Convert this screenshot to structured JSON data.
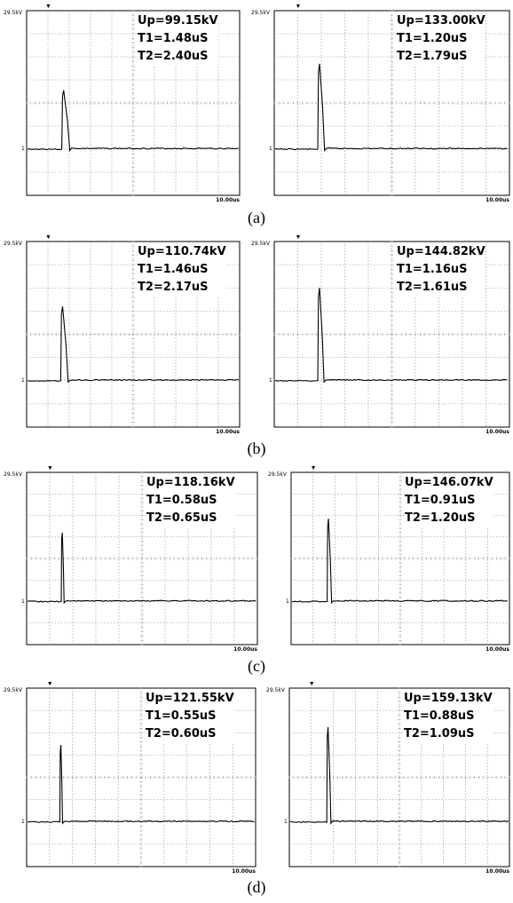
{
  "captions": [
    "(a)",
    "(b)",
    "(c)",
    "(d)"
  ],
  "scope": {
    "vertical_scale": "29.5kV",
    "time_scale": "10.00us",
    "channel_marker": "1",
    "trigger_marker": "▼",
    "grid": true,
    "divisions": {
      "x": 10,
      "y": 8
    }
  },
  "panels": [
    {
      "id": "a-left",
      "annotation": [
        "Up=99.15kV",
        "T1=1.48uS",
        "T2=2.40uS"
      ]
    },
    {
      "id": "a-right",
      "annotation": [
        "Up=133.00kV",
        "T1=1.20uS",
        "T2=1.79uS"
      ]
    },
    {
      "id": "b-left",
      "annotation": [
        "Up=110.74kV",
        "T1=1.46uS",
        "T2=2.17uS"
      ]
    },
    {
      "id": "b-right",
      "annotation": [
        "Up=144.82kV",
        "T1=1.16uS",
        "T2=1.61uS"
      ]
    },
    {
      "id": "c-left",
      "annotation": [
        "Up=118.16kV",
        "T1=0.58uS",
        "T2=0.65uS"
      ]
    },
    {
      "id": "c-right",
      "annotation": [
        "Up=146.07kV",
        "T1=0.91uS",
        "T2=1.20uS"
      ]
    },
    {
      "id": "d-left",
      "annotation": [
        "Up=121.55kV",
        "T1=0.55uS",
        "T2=0.60uS"
      ]
    },
    {
      "id": "d-right",
      "annotation": [
        "Up=159.13kV",
        "T1=0.88uS",
        "T2=1.09uS"
      ]
    }
  ],
  "chart_data": [
    {
      "type": "line",
      "panel": "a-left",
      "peak_kV": 99.15,
      "t1_us": 1.48,
      "t2_us": 2.4,
      "pulse_start_div": 1.65,
      "peak_div": 2.55,
      "y_per_div_kV": 29.5,
      "x_per_div_us": 10.0
    },
    {
      "type": "line",
      "panel": "a-right",
      "peak_kV": 133.0,
      "t1_us": 1.2,
      "t2_us": 1.79,
      "pulse_start_div": 1.85,
      "peak_div": 3.7,
      "y_per_div_kV": 29.5,
      "x_per_div_us": 10.0
    },
    {
      "type": "line",
      "panel": "b-left",
      "peak_kV": 110.74,
      "t1_us": 1.46,
      "t2_us": 2.17,
      "pulse_start_div": 1.6,
      "peak_div": 3.2,
      "y_per_div_kV": 29.5,
      "x_per_div_us": 10.0
    },
    {
      "type": "line",
      "panel": "b-right",
      "peak_kV": 144.82,
      "t1_us": 1.16,
      "t2_us": 1.61,
      "pulse_start_div": 1.85,
      "peak_div": 4.0,
      "y_per_div_kV": 29.5,
      "x_per_div_us": 10.0
    },
    {
      "type": "line",
      "panel": "c-left",
      "peak_kV": 118.16,
      "t1_us": 0.58,
      "t2_us": 0.65,
      "pulse_start_div": 1.5,
      "peak_div": 3.2,
      "y_per_div_kV": 29.5,
      "x_per_div_us": 10.0
    },
    {
      "type": "line",
      "panel": "c-right",
      "peak_kV": 146.07,
      "t1_us": 0.91,
      "t2_us": 1.2,
      "pulse_start_div": 1.65,
      "peak_div": 3.85,
      "y_per_div_kV": 29.5,
      "x_per_div_us": 10.0
    },
    {
      "type": "line",
      "panel": "d-left",
      "peak_kV": 121.55,
      "t1_us": 0.55,
      "t2_us": 0.6,
      "pulse_start_div": 1.45,
      "peak_div": 3.45,
      "y_per_div_kV": 29.5,
      "x_per_div_us": 10.0
    },
    {
      "type": "line",
      "panel": "d-right",
      "peak_kV": 159.13,
      "t1_us": 0.88,
      "t2_us": 1.09,
      "pulse_start_div": 1.7,
      "peak_div": 4.25,
      "y_per_div_kV": 29.5,
      "x_per_div_us": 10.0
    }
  ]
}
